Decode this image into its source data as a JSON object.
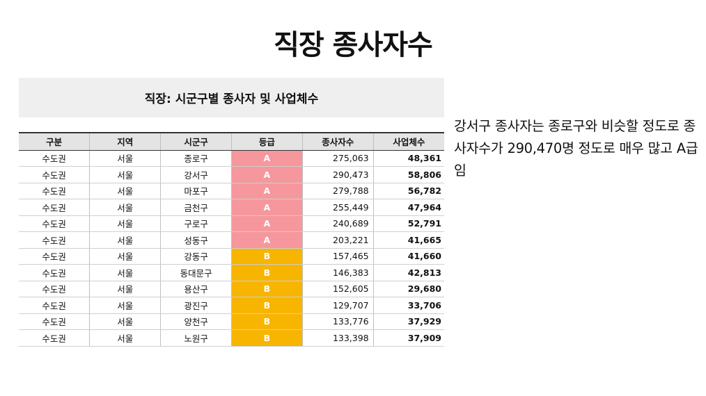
{
  "slide_title": "직장 종사자수",
  "table": {
    "caption": "직장: 시군구별 종사자 및 사업체수",
    "headers": [
      "구분",
      "지역",
      "시군구",
      "등급",
      "종사자수",
      "사업체수"
    ],
    "rows": [
      {
        "region_group": "수도권",
        "region": "서울",
        "district": "종로구",
        "grade": "A",
        "employees": "275,063",
        "businesses": "48,361"
      },
      {
        "region_group": "수도권",
        "region": "서울",
        "district": "강서구",
        "grade": "A",
        "employees": "290,473",
        "businesses": "58,806"
      },
      {
        "region_group": "수도권",
        "region": "서울",
        "district": "마포구",
        "grade": "A",
        "employees": "279,788",
        "businesses": "56,782"
      },
      {
        "region_group": "수도권",
        "region": "서울",
        "district": "금천구",
        "grade": "A",
        "employees": "255,449",
        "businesses": "47,964"
      },
      {
        "region_group": "수도권",
        "region": "서울",
        "district": "구로구",
        "grade": "A",
        "employees": "240,689",
        "businesses": "52,791"
      },
      {
        "region_group": "수도권",
        "region": "서울",
        "district": "성동구",
        "grade": "A",
        "employees": "203,221",
        "businesses": "41,665"
      },
      {
        "region_group": "수도권",
        "region": "서울",
        "district": "강동구",
        "grade": "B",
        "employees": "157,465",
        "businesses": "41,660"
      },
      {
        "region_group": "수도권",
        "region": "서울",
        "district": "동대문구",
        "grade": "B",
        "employees": "146,383",
        "businesses": "42,813"
      },
      {
        "region_group": "수도권",
        "region": "서울",
        "district": "용산구",
        "grade": "B",
        "employees": "152,605",
        "businesses": "29,680"
      },
      {
        "region_group": "수도권",
        "region": "서울",
        "district": "광진구",
        "grade": "B",
        "employees": "129,707",
        "businesses": "33,706"
      },
      {
        "region_group": "수도권",
        "region": "서울",
        "district": "양천구",
        "grade": "B",
        "employees": "133,776",
        "businesses": "37,929"
      },
      {
        "region_group": "수도권",
        "region": "서울",
        "district": "노원구",
        "grade": "B",
        "employees": "133,398",
        "businesses": "37,909"
      }
    ]
  },
  "note": "강서구 종사자는 종로구와 비슷할 정도로 종사자수가 290,470명 정도로 매우 많고 A급 임",
  "colors": {
    "grade_a": "#f5979c",
    "grade_b": "#f7b500"
  }
}
